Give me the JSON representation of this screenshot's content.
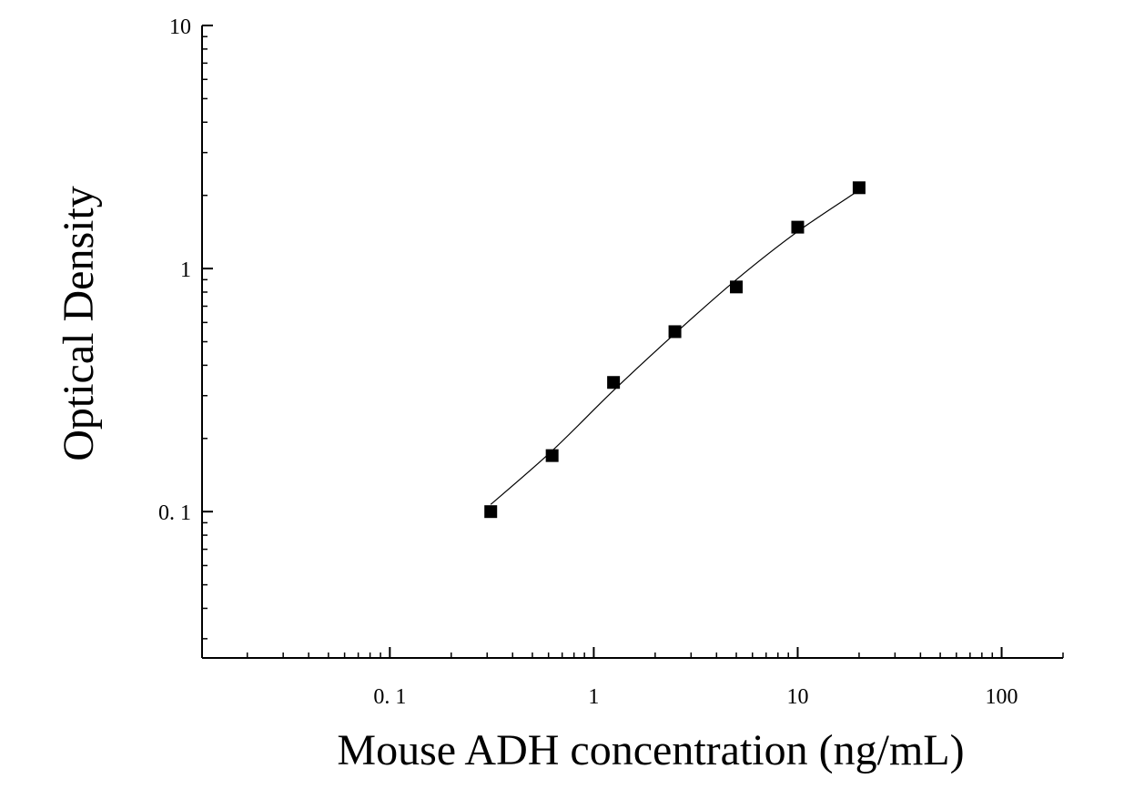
{
  "chart_data": {
    "type": "scatter",
    "title": "",
    "xlabel": "Mouse ADH concentration (ng/mL)",
    "ylabel": "Optical Density",
    "x_scale": "log",
    "y_scale": "log",
    "xlim": [
      0.012,
      200
    ],
    "ylim": [
      0.025,
      10
    ],
    "x_ticks": [
      {
        "value": 0.1,
        "label": "0. 1"
      },
      {
        "value": 1,
        "label": "1"
      },
      {
        "value": 10,
        "label": "10"
      },
      {
        "value": 100,
        "label": "100"
      }
    ],
    "y_ticks": [
      {
        "value": 0.1,
        "label": "0. 1"
      },
      {
        "value": 1,
        "label": "1"
      },
      {
        "value": 10,
        "label": "10"
      }
    ],
    "grid": false,
    "series": [
      {
        "marker": "square",
        "color": "#000000",
        "points": [
          {
            "x": 0.3125,
            "y": 0.1
          },
          {
            "x": 0.625,
            "y": 0.17
          },
          {
            "x": 1.25,
            "y": 0.34
          },
          {
            "x": 2.5,
            "y": 0.55
          },
          {
            "x": 5,
            "y": 0.84
          },
          {
            "x": 10,
            "y": 1.48
          },
          {
            "x": 20,
            "y": 2.15
          }
        ]
      }
    ],
    "fit_curve": {
      "color": "#000000",
      "points": [
        {
          "x": 0.3125,
          "y": 0.107
        },
        {
          "x": 0.625,
          "y": 0.178
        },
        {
          "x": 1.25,
          "y": 0.315
        },
        {
          "x": 2.5,
          "y": 0.54
        },
        {
          "x": 5,
          "y": 0.9
        },
        {
          "x": 10,
          "y": 1.42
        },
        {
          "x": 20,
          "y": 2.1
        }
      ]
    }
  }
}
